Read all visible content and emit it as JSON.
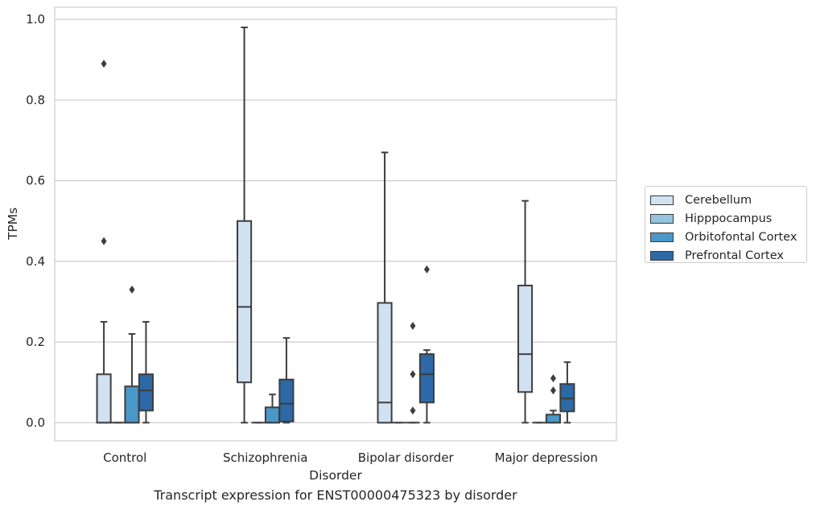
{
  "caption": "Transcript expression for ENST00000475323 by disorder",
  "chart_data": {
    "type": "box",
    "xlabel": "Disorder",
    "ylabel": "TPMs",
    "ylim": [
      -0.045,
      1.03
    ],
    "yticks": [
      "0.0",
      "0.2",
      "0.4",
      "0.6",
      "0.8",
      "1.0"
    ],
    "grid": true,
    "legend_position": "right",
    "categories": [
      "Control",
      "Schizophrenia",
      "Bipolar disorder",
      "Major depression"
    ],
    "series": [
      {
        "name": "Cerebellum",
        "color": "#d0e1f2",
        "boxes": [
          {
            "whislo": 0.0,
            "q1": 0.0,
            "med": 0.0,
            "q3": 0.12,
            "whishi": 0.25,
            "fliers": [
              0.45,
              0.89
            ]
          },
          {
            "whislo": 0.0,
            "q1": 0.1,
            "med": 0.287,
            "q3": 0.5,
            "whishi": 0.98,
            "fliers": []
          },
          {
            "whislo": 0.0,
            "q1": 0.0,
            "med": 0.05,
            "q3": 0.297,
            "whishi": 0.67,
            "fliers": []
          },
          {
            "whislo": 0.0,
            "q1": 0.076,
            "med": 0.17,
            "q3": 0.34,
            "whishi": 0.55,
            "fliers": []
          }
        ]
      },
      {
        "name": "Hipppocampus",
        "color": "#94c4df",
        "boxes": [
          {
            "whislo": 0.0,
            "q1": 0.0,
            "med": 0.0,
            "q3": 0.0,
            "whishi": 0.0,
            "fliers": []
          },
          {
            "whislo": 0.0,
            "q1": 0.0,
            "med": 0.0,
            "q3": 0.0,
            "whishi": 0.0,
            "fliers": []
          },
          {
            "whislo": 0.0,
            "q1": 0.0,
            "med": 0.0,
            "q3": 0.0,
            "whishi": 0.0,
            "fliers": []
          },
          {
            "whislo": 0.0,
            "q1": 0.0,
            "med": 0.0,
            "q3": 0.0,
            "whishi": 0.0,
            "fliers": []
          }
        ]
      },
      {
        "name": "Orbitofontal Cortex",
        "color": "#4a98c9",
        "boxes": [
          {
            "whislo": 0.0,
            "q1": 0.0,
            "med": 0.0,
            "q3": 0.09,
            "whishi": 0.22,
            "fliers": [
              0.33
            ]
          },
          {
            "whislo": 0.0,
            "q1": 0.0,
            "med": 0.0,
            "q3": 0.038,
            "whishi": 0.07,
            "fliers": []
          },
          {
            "whislo": 0.0,
            "q1": 0.0,
            "med": 0.0,
            "q3": 0.0,
            "whishi": 0.0,
            "fliers": [
              0.03,
              0.12,
              0.24
            ]
          },
          {
            "whislo": 0.0,
            "q1": 0.0,
            "med": 0.0,
            "q3": 0.02,
            "whishi": 0.03,
            "fliers": [
              0.08,
              0.11
            ]
          }
        ]
      },
      {
        "name": "Prefrontal Cortex",
        "color": "#2c69a6",
        "boxes": [
          {
            "whislo": 0.0,
            "q1": 0.03,
            "med": 0.08,
            "q3": 0.12,
            "whishi": 0.25,
            "fliers": []
          },
          {
            "whislo": 0.0,
            "q1": 0.003,
            "med": 0.047,
            "q3": 0.107,
            "whishi": 0.21,
            "fliers": []
          },
          {
            "whislo": 0.0,
            "q1": 0.05,
            "med": 0.12,
            "q3": 0.17,
            "whishi": 0.18,
            "fliers": [
              0.38
            ]
          },
          {
            "whislo": 0.0,
            "q1": 0.028,
            "med": 0.06,
            "q3": 0.096,
            "whishi": 0.15,
            "fliers": []
          }
        ]
      }
    ]
  }
}
